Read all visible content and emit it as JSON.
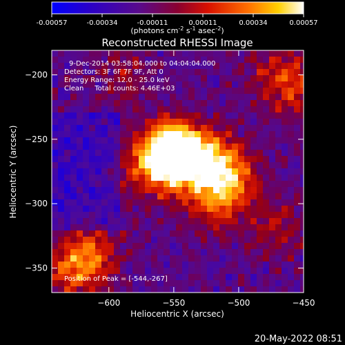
{
  "chart_data": {
    "type": "heatmap",
    "title": "Reconstructed RHESSI Image",
    "xlabel": "Heliocentric X (arcsec)",
    "ylabel": "Heliocentric Y (arcsec)",
    "xlim": [
      -644,
      -450
    ],
    "ylim": [
      -369,
      -181
    ],
    "xticks": [
      -600,
      -550,
      -500,
      -450
    ],
    "yticks": [
      -200,
      -250,
      -300,
      -350
    ],
    "colorbar": {
      "colormap": "RHESSI black-body (blue → purple → red → orange → yellow → white)",
      "range": [
        -0.00057,
        0.00057
      ],
      "ticks": [
        "-0.00057",
        "-0.00034",
        "-0.00011",
        "0.00011",
        "0.00034",
        "0.00057"
      ],
      "label_main": "(photons cm",
      "label_sup1": "-2",
      "label_mid": " s",
      "label_sup2": "-1",
      "label_end": " asec",
      "label_sup3": "-2",
      "label_close": ")"
    },
    "info_lines": [
      "9-Dec-2014 03:58:04.000 to 04:04:04.000",
      "Detectors: 3F 6F 7F 9F, Att 0",
      "Energy Range: 12.0 - 25.0 keV",
      "Clean     Total counts: 4.46E+03"
    ],
    "peak_text": "Position of Peak = [-544,-267]",
    "peak_position": [
      -544,
      -267
    ],
    "sources": [
      {
        "x": -553,
        "y": -258,
        "strength": 1.0
      },
      {
        "x": -545,
        "y": -267,
        "strength": 0.9
      },
      {
        "x": -520,
        "y": -265,
        "strength": 0.55
      },
      {
        "x": -505,
        "y": -282,
        "strength": 0.55
      },
      {
        "x": -520,
        "y": -300,
        "strength": 0.45
      },
      {
        "x": -575,
        "y": -275,
        "strength": 0.35
      },
      {
        "x": -615,
        "y": -340,
        "strength": 0.55
      },
      {
        "x": -630,
        "y": -355,
        "strength": 0.4
      },
      {
        "x": -470,
        "y": -200,
        "strength": 0.4
      },
      {
        "x": -450,
        "y": -215,
        "strength": 0.3
      },
      {
        "x": -470,
        "y": -320,
        "strength": 0.3
      },
      {
        "x": -590,
        "y": -200,
        "strength": 0.25
      }
    ]
  },
  "footer": {
    "timestamp": "20-May-2022 08:51"
  }
}
